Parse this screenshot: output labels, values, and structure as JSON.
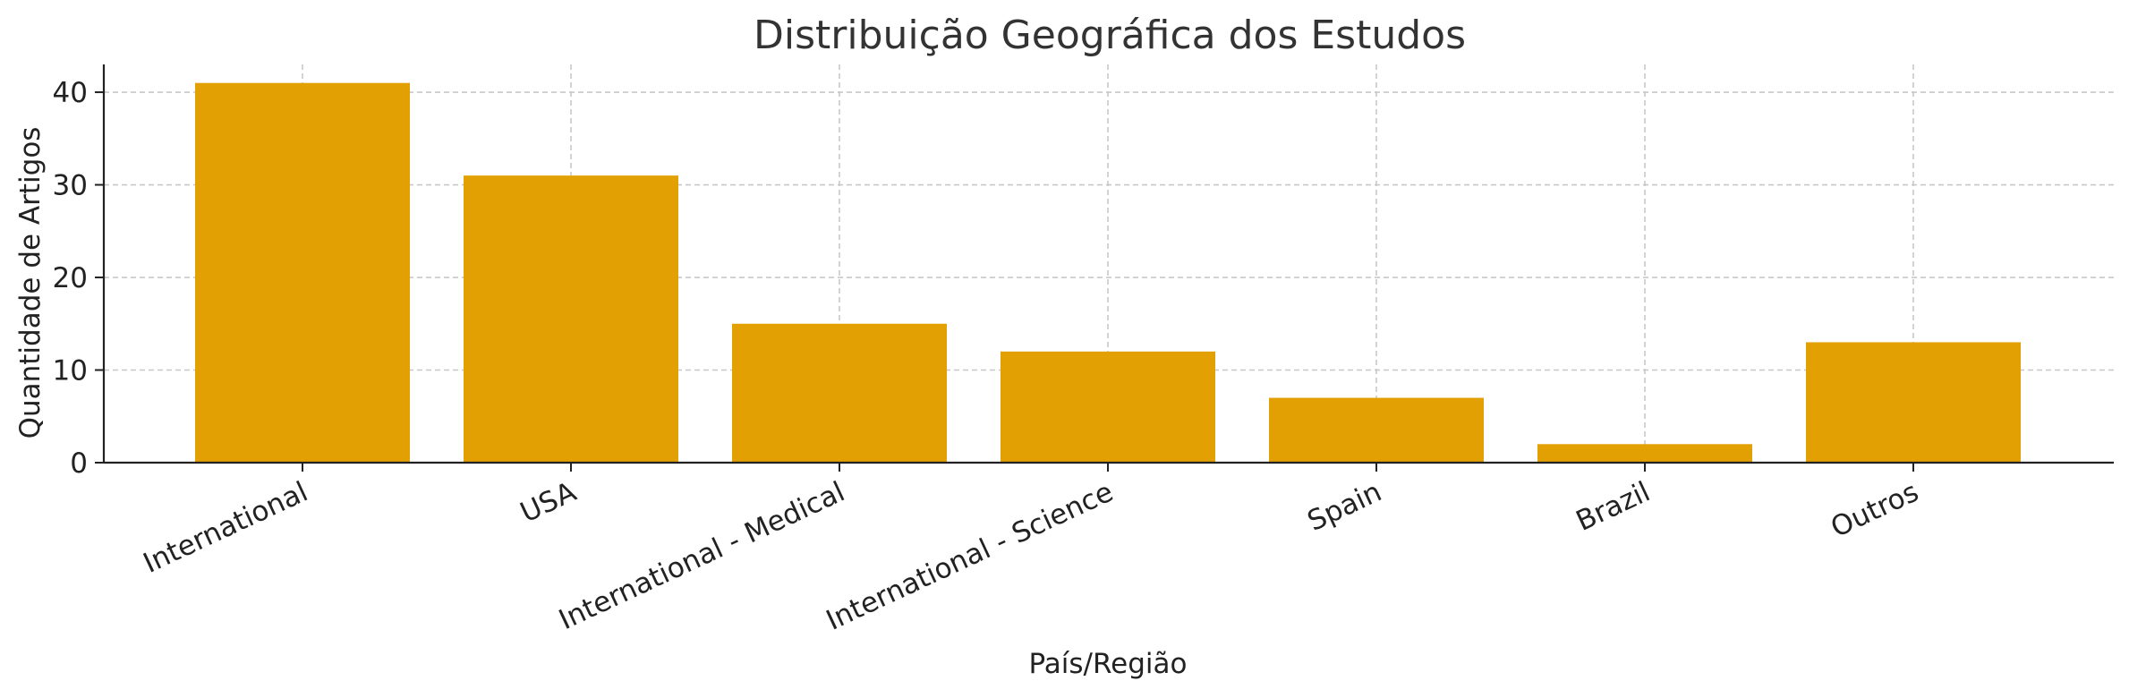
{
  "chart_data": {
    "type": "bar",
    "title": "Distribuição Geográfica dos Estudos",
    "xlabel": "País/Região",
    "ylabel": "Quantidade de Artigos",
    "categories": [
      "International",
      "USA",
      "International - Medical",
      "International - Science",
      "Spain",
      "Brazil",
      "Outros"
    ],
    "values": [
      41,
      31,
      15,
      12,
      7,
      2,
      13
    ],
    "ylim": [
      0,
      43
    ],
    "yticks": [
      0,
      10,
      20,
      30,
      40
    ],
    "bar_color": "#E3A002",
    "grid": true
  }
}
